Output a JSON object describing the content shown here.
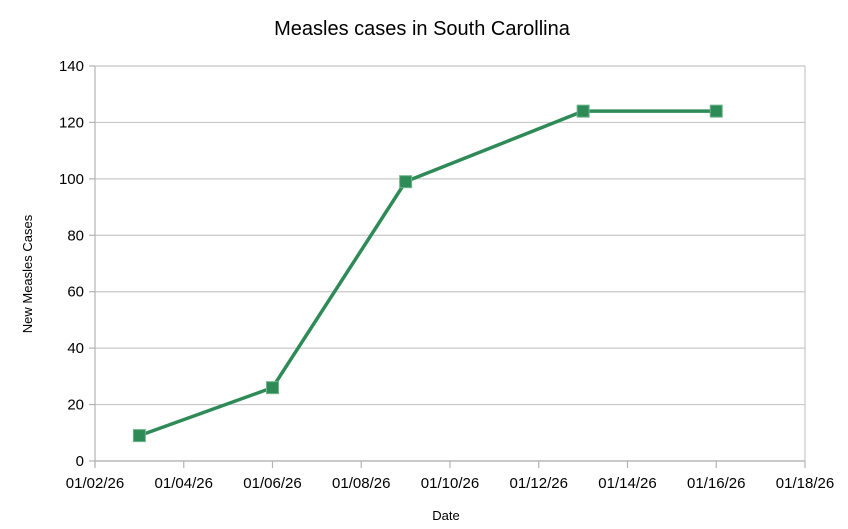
{
  "chart_data": {
    "type": "line",
    "title": "Measles cases in South Carollina",
    "xlabel": "Date",
    "ylabel": "New Measles Cases",
    "x_ticks": [
      "01/02/26",
      "01/04/26",
      "01/06/26",
      "01/08/26",
      "01/10/26",
      "01/12/26",
      "01/14/26",
      "01/16/26",
      "01/18/26"
    ],
    "y_ticks": [
      "0",
      "20",
      "40",
      "60",
      "80",
      "100",
      "120",
      "140"
    ],
    "xlim_days": [
      0,
      16
    ],
    "ylim": [
      0,
      140
    ],
    "grid": true,
    "series": [
      {
        "name": "New Measles Cases",
        "color": "#2e8b57",
        "x": [
          "01/03/26",
          "01/06/26",
          "01/09/26",
          "01/13/26",
          "01/16/26"
        ],
        "x_days": [
          1,
          4,
          7,
          11,
          14
        ],
        "values": [
          9,
          26,
          99,
          124,
          124
        ]
      }
    ]
  }
}
